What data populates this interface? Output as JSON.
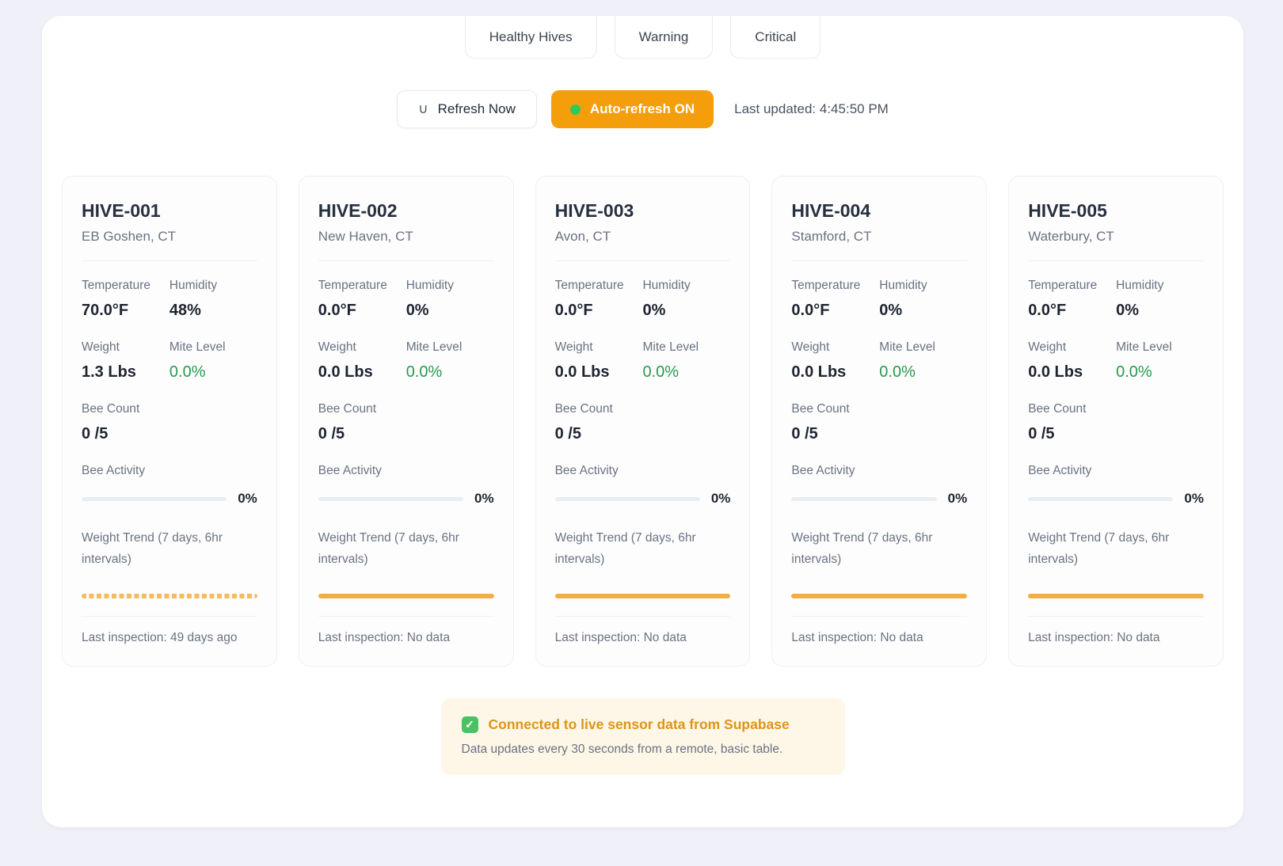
{
  "tabs": [
    "Healthy Hives",
    "Warning",
    "Critical"
  ],
  "controls": {
    "refresh_icon": "∪",
    "refresh_label": "Refresh Now",
    "autorefresh_label": "Auto-refresh ON",
    "last_updated": "Last updated: 4:45:50 PM"
  },
  "labels": {
    "temperature": "Temperature",
    "humidity": "Humidity",
    "weight": "Weight",
    "mite_level": "Mite Level",
    "bee_count": "Bee Count",
    "bee_activity": "Bee Activity",
    "weight_trend": "Weight Trend (7 days, 6hr intervals)"
  },
  "cards": [
    {
      "id": "HIVE-001",
      "location": "EB Goshen, CT",
      "temperature": "70.0°F",
      "humidity": "48%",
      "weight": "1.3 Lbs",
      "mite_level": "0.0%",
      "bee_count": "0 /5",
      "bee_activity": "0%",
      "trend_style": "dotted",
      "last_inspection": "Last inspection: 49 days ago"
    },
    {
      "id": "HIVE-002",
      "location": "New Haven, CT",
      "temperature": "0.0°F",
      "humidity": "0%",
      "weight": "0.0 Lbs",
      "mite_level": "0.0%",
      "bee_count": "0 /5",
      "bee_activity": "0%",
      "trend_style": "solid",
      "last_inspection": "Last inspection: No data"
    },
    {
      "id": "HIVE-003",
      "location": "Avon, CT",
      "temperature": "0.0°F",
      "humidity": "0%",
      "weight": "0.0 Lbs",
      "mite_level": "0.0%",
      "bee_count": "0 /5",
      "bee_activity": "0%",
      "trend_style": "solid",
      "last_inspection": "Last inspection: No data"
    },
    {
      "id": "HIVE-004",
      "location": "Stamford, CT",
      "temperature": "0.0°F",
      "humidity": "0%",
      "weight": "0.0 Lbs",
      "mite_level": "0.0%",
      "bee_count": "0 /5",
      "bee_activity": "0%",
      "trend_style": "solid",
      "last_inspection": "Last inspection: No data"
    },
    {
      "id": "HIVE-005",
      "location": "Waterbury, CT",
      "temperature": "0.0°F",
      "humidity": "0%",
      "weight": "0.0 Lbs",
      "mite_level": "0.0%",
      "bee_count": "0 /5",
      "bee_activity": "0%",
      "trend_style": "solid",
      "last_inspection": "Last inspection: No data"
    }
  ],
  "banner": {
    "check_icon": "✓",
    "title": "Connected to live sensor data from Supabase",
    "subtitle": "Data updates every 30 seconds from a remote, basic table."
  },
  "colors": {
    "page_background": "#F0F1F8",
    "accent_orange": "#F59E0B",
    "trend_orange": "#F2AE43",
    "status_green_dot": "#34C759",
    "mite_green": "#259A4D",
    "banner_background": "#FEF7E8",
    "banner_text": "#DF9414",
    "check_green": "#4BC163"
  }
}
